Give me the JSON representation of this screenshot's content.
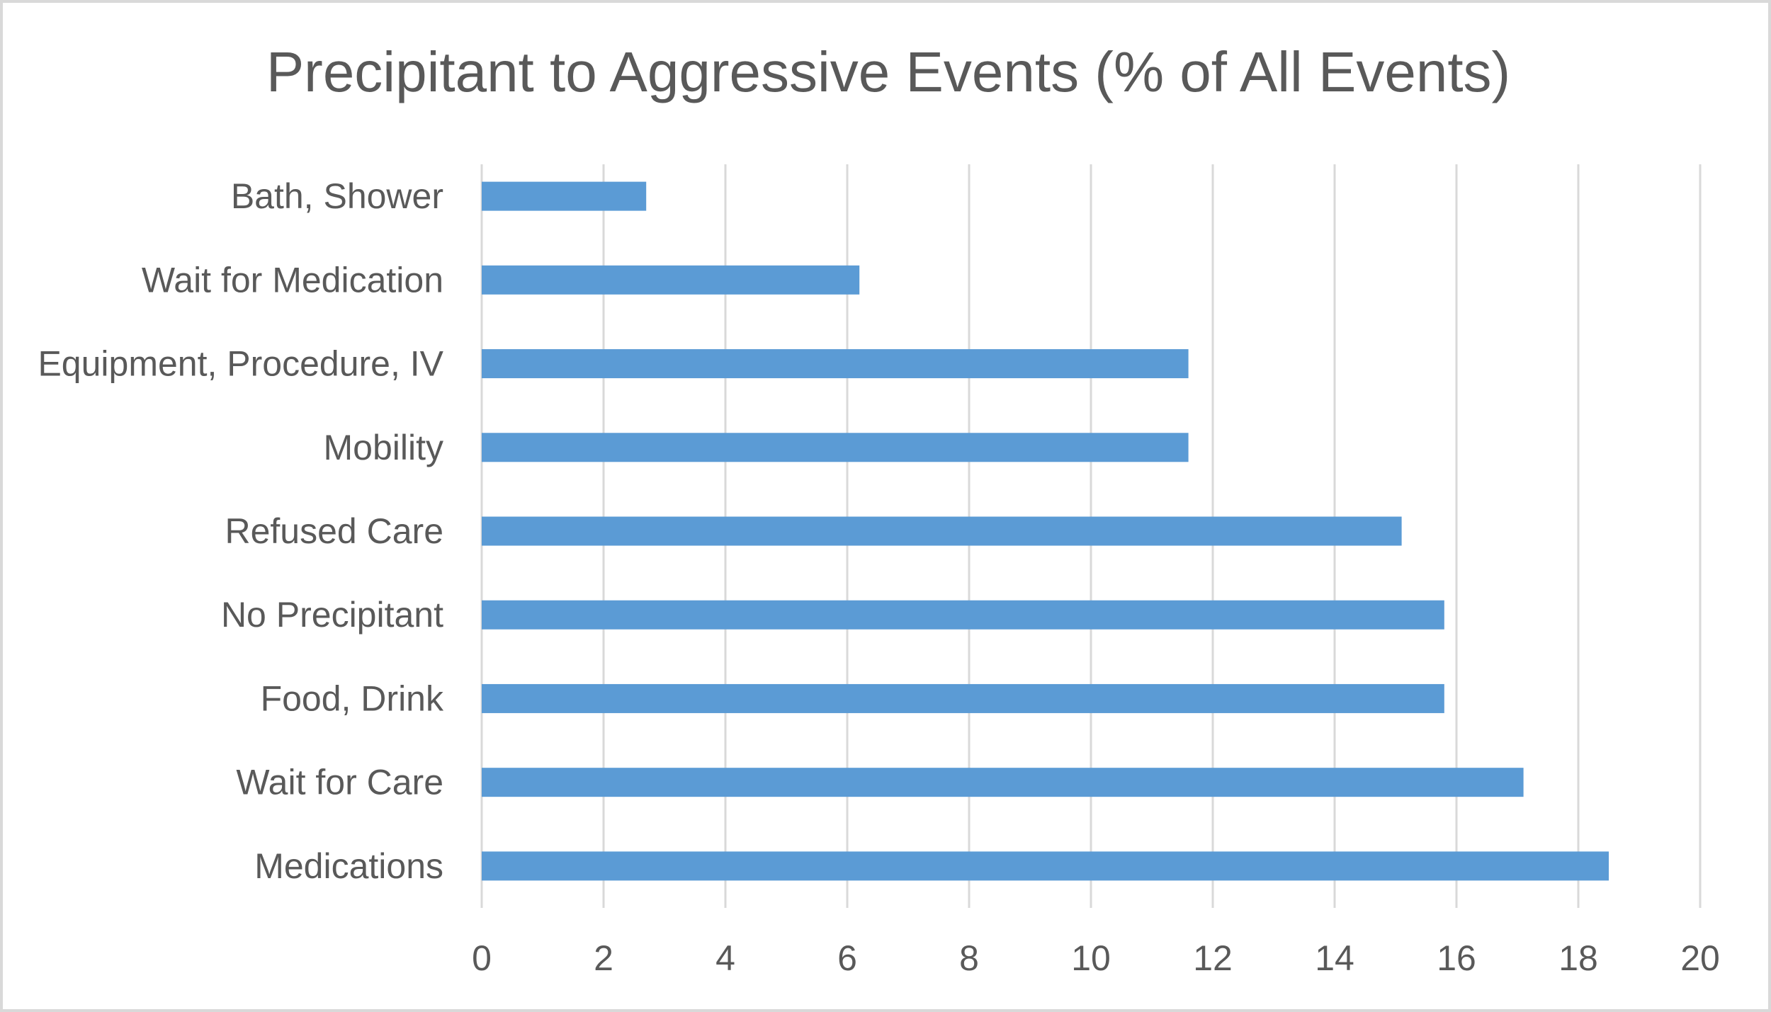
{
  "chart_data": {
    "type": "bar",
    "orientation": "horizontal",
    "title": "Precipitant to Aggressive Events (% of All Events)",
    "categories": [
      "Bath, Shower",
      "Wait for Medication",
      "Equipment, Procedure, IV",
      "Mobility",
      "Refused Care",
      "No Precipitant",
      "Food, Drink",
      "Wait for Care",
      "Medications"
    ],
    "values": [
      2.7,
      6.2,
      11.6,
      11.6,
      15.1,
      15.8,
      15.8,
      17.1,
      18.5
    ],
    "xlim": [
      0,
      20
    ],
    "xticks": [
      "0",
      "2",
      "4",
      "6",
      "8",
      "10",
      "12",
      "14",
      "16",
      "18",
      "20"
    ],
    "grid": true,
    "legend": "none",
    "bar_color": "#5b9bd5",
    "grid_color": "#d9d9d9",
    "text_color": "#595959"
  }
}
